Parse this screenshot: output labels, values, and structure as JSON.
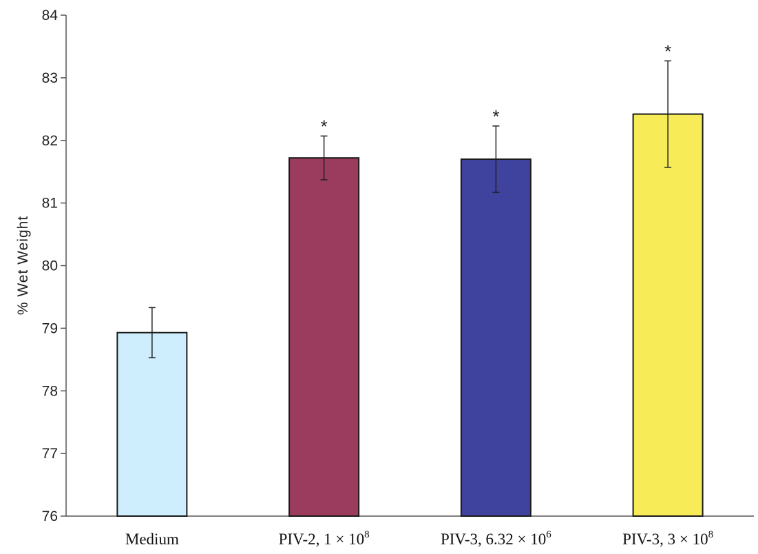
{
  "chart_data": {
    "type": "bar",
    "categories": [
      {
        "label": "Medium",
        "sup": ""
      },
      {
        "label": "PIV-2, 1 × 10",
        "sup": "8"
      },
      {
        "label": "PIV-3, 6.32 × 10",
        "sup": "6"
      },
      {
        "label": "PIV-3, 3 × 10",
        "sup": "8"
      }
    ],
    "values": [
      78.93,
      81.72,
      81.7,
      82.42
    ],
    "errors": [
      0.4,
      0.35,
      0.53,
      0.85
    ],
    "significance": [
      "",
      "*",
      "*",
      "*"
    ],
    "colors": [
      "#cfeefd",
      "#9b3b5d",
      "#40439e",
      "#f7ec57"
    ],
    "title": "",
    "xlabel": "",
    "ylabel": "% Wet Weight",
    "ylim": [
      76,
      84
    ],
    "yticks": [
      76,
      77,
      78,
      79,
      80,
      81,
      82,
      83,
      84
    ],
    "grid": false,
    "legend": "none"
  }
}
